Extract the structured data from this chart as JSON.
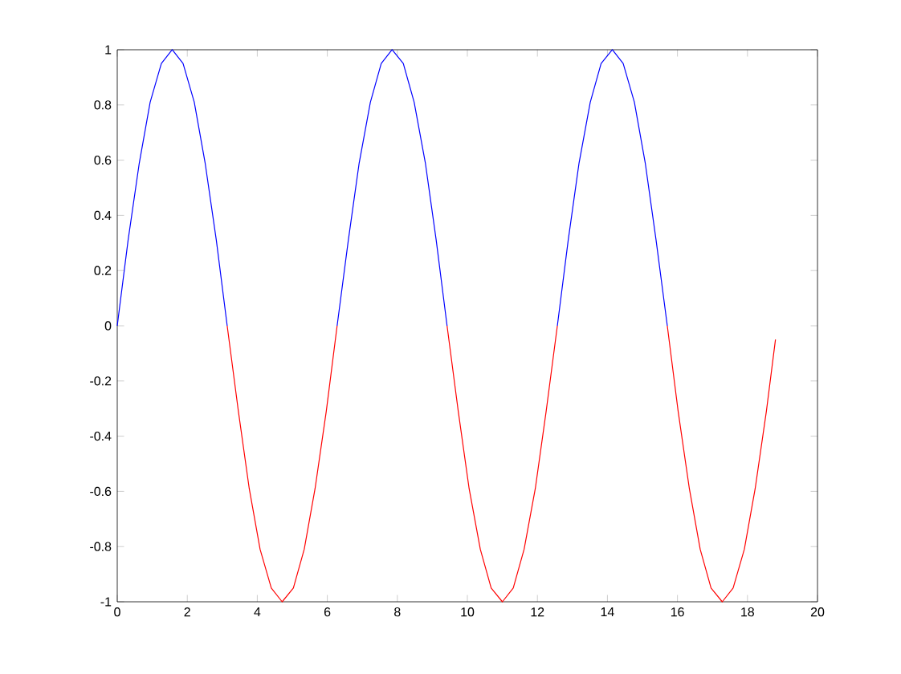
{
  "chart_data": {
    "type": "line",
    "x": [
      0,
      0.31,
      0.63,
      0.94,
      1.26,
      1.57,
      1.88,
      2.2,
      2.51,
      2.83,
      3.14,
      3.46,
      3.77,
      4.08,
      4.4,
      4.71,
      5.03,
      5.34,
      5.65,
      5.97,
      6.28,
      6.6,
      6.91,
      7.23,
      7.54,
      7.85,
      8.17,
      8.48,
      8.8,
      9.11,
      9.42,
      9.74,
      10.05,
      10.37,
      10.68,
      11.0,
      11.31,
      11.62,
      11.94,
      12.25,
      12.57,
      12.88,
      13.19,
      13.51,
      13.82,
      14.14,
      14.45,
      14.77,
      15.08,
      15.39,
      15.71,
      16.02,
      16.34,
      16.65,
      16.96,
      17.28,
      17.59,
      17.91,
      18.22,
      18.54,
      18.8
    ],
    "series": [
      {
        "color": "#0000ff",
        "values": [
          0,
          0.31,
          0.59,
          0.81,
          0.95,
          1,
          0.95,
          0.81,
          0.59,
          0.31,
          0,
          null,
          null,
          null,
          null,
          null,
          null,
          null,
          null,
          null,
          0,
          0.31,
          0.59,
          0.81,
          0.95,
          1,
          0.95,
          0.81,
          0.59,
          0.31,
          0,
          null,
          null,
          null,
          null,
          null,
          null,
          null,
          null,
          null,
          0,
          0.31,
          0.59,
          0.81,
          0.95,
          1,
          0.95,
          0.81,
          0.59,
          0.31,
          0,
          null,
          null,
          null,
          null,
          null,
          null,
          null,
          null,
          null,
          null
        ]
      },
      {
        "color": "#ff0000",
        "values": [
          null,
          null,
          null,
          null,
          null,
          null,
          null,
          null,
          null,
          null,
          0,
          -0.31,
          -0.59,
          -0.81,
          -0.95,
          -1,
          -0.95,
          -0.81,
          -0.59,
          -0.31,
          0,
          null,
          null,
          null,
          null,
          null,
          null,
          null,
          null,
          null,
          0,
          -0.31,
          -0.59,
          -0.81,
          -0.95,
          -1,
          -0.95,
          -0.81,
          -0.59,
          -0.31,
          0,
          null,
          null,
          null,
          null,
          null,
          null,
          null,
          null,
          null,
          0,
          -0.31,
          -0.59,
          -0.81,
          -0.95,
          -1,
          -0.95,
          -0.81,
          -0.59,
          -0.31,
          -0.05
        ]
      }
    ],
    "xlim": [
      0,
      20
    ],
    "ylim": [
      -1,
      1
    ],
    "xticks": [
      0,
      2,
      4,
      6,
      8,
      10,
      12,
      14,
      16,
      18,
      20
    ],
    "yticks": [
      -1,
      -0.8,
      -0.6,
      -0.4,
      -0.2,
      0,
      0.2,
      0.4,
      0.6,
      0.8,
      1
    ],
    "grid": false,
    "marker": "none"
  }
}
